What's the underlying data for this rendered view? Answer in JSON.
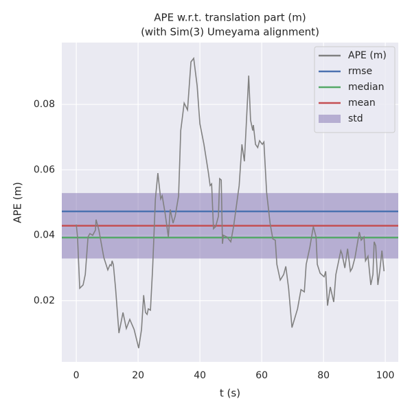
{
  "chart_data": {
    "type": "line",
    "title": "APE w.r.t. translation part (m)",
    "subtitle": "(with Sim(3) Umeyama alignment)",
    "xlabel": "t (s)",
    "ylabel": "APE (m)",
    "xlim": [
      -4.7,
      104.2
    ],
    "ylim": [
      0.0013,
      0.0989
    ],
    "xticks": [
      0,
      20,
      40,
      60,
      80,
      100
    ],
    "yticks": [
      0.02,
      0.04,
      0.06,
      0.08
    ],
    "grid": true,
    "legend": "upper right",
    "series": [
      {
        "name": "APE (m)",
        "color": "#808080",
        "x": [
          0,
          0.4,
          1.1,
          2.2,
          2.9,
          3.8,
          4.4,
          5.3,
          6.2,
          6.4,
          7.3,
          8.9,
          10.2,
          10.9,
          11.3,
          11.6,
          12,
          12.7,
          13.8,
          15.1,
          16.2,
          17.3,
          18.7,
          20.2,
          21.1,
          21.8,
          22.4,
          22.9,
          23.3,
          24,
          24.7,
          25.6,
          26.4,
          27.3,
          27.8,
          28.7,
          29.8,
          30.4,
          31.3,
          32,
          33.1,
          33.8,
          34.9,
          36,
          37.1,
          38,
          39.1,
          40,
          41.3,
          42.7,
          43.3,
          43.8,
          44.4,
          45.1,
          46,
          46.4,
          46.9,
          47.3,
          47.6,
          48.7,
          50,
          50.9,
          52.7,
          53.6,
          54.4,
          54.9,
          55.8,
          56.4,
          57.1,
          57.3,
          58,
          58.7,
          59.3,
          60.2,
          60.7,
          61.6,
          62.7,
          63.6,
          64.4,
          64.9,
          66,
          67.1,
          67.8,
          68.7,
          69.8,
          71.6,
          72.7,
          73.8,
          74.4,
          75.6,
          76.7,
          77.6,
          78,
          78.9,
          80.2,
          80.7,
          81.3,
          82.2,
          83.3,
          84,
          85.6,
          86,
          86.9,
          87.8,
          88.7,
          89.3,
          90.2,
          91.6,
          92.2,
          93.1,
          93.6,
          94.4,
          95.3,
          96,
          96.4,
          96.9,
          97.6,
          98.2,
          98.9,
          99.6
        ],
        "values": [
          0.0433,
          0.0395,
          0.0238,
          0.0248,
          0.028,
          0.0395,
          0.0405,
          0.04,
          0.0416,
          0.0448,
          0.0416,
          0.0332,
          0.0294,
          0.031,
          0.0307,
          0.0322,
          0.031,
          0.0238,
          0.0101,
          0.0164,
          0.0115,
          0.0143,
          0.0112,
          0.0055,
          0.0112,
          0.0217,
          0.0164,
          0.0158,
          0.0175,
          0.0171,
          0.03,
          0.0511,
          0.059,
          0.0511,
          0.0521,
          0.0469,
          0.0395,
          0.0479,
          0.0437,
          0.0458,
          0.0521,
          0.072,
          0.0804,
          0.0783,
          0.093,
          0.0941,
          0.0857,
          0.0741,
          0.0678,
          0.0594,
          0.0552,
          0.0557,
          0.042,
          0.0427,
          0.0458,
          0.0573,
          0.0569,
          0.0374,
          0.04,
          0.0395,
          0.038,
          0.0427,
          0.0552,
          0.0678,
          0.0626,
          0.072,
          0.0888,
          0.0752,
          0.072,
          0.0737,
          0.0678,
          0.0668,
          0.0689,
          0.0678,
          0.0685,
          0.0531,
          0.0437,
          0.0389,
          0.0385,
          0.0311,
          0.0263,
          0.028,
          0.0305,
          0.0238,
          0.0118,
          0.0175,
          0.0234,
          0.0227,
          0.0311,
          0.0364,
          0.0427,
          0.0395,
          0.0311,
          0.0284,
          0.0273,
          0.029,
          0.0185,
          0.0242,
          0.0196,
          0.028,
          0.0353,
          0.0343,
          0.03,
          0.0359,
          0.029,
          0.03,
          0.0332,
          0.041,
          0.0385,
          0.0395,
          0.0322,
          0.0336,
          0.0248,
          0.028,
          0.038,
          0.0368,
          0.0248,
          0.029,
          0.0353,
          0.029
        ]
      }
    ],
    "stats": [
      {
        "name": "rmse",
        "color": "#4c72b0",
        "value": 0.0473
      },
      {
        "name": "median",
        "color": "#55a868",
        "value": 0.0393
      },
      {
        "name": "mean",
        "color": "#c44e52",
        "value": 0.0429
      },
      {
        "name": "std",
        "color": "#8172b2",
        "value": 0.01
      }
    ]
  }
}
